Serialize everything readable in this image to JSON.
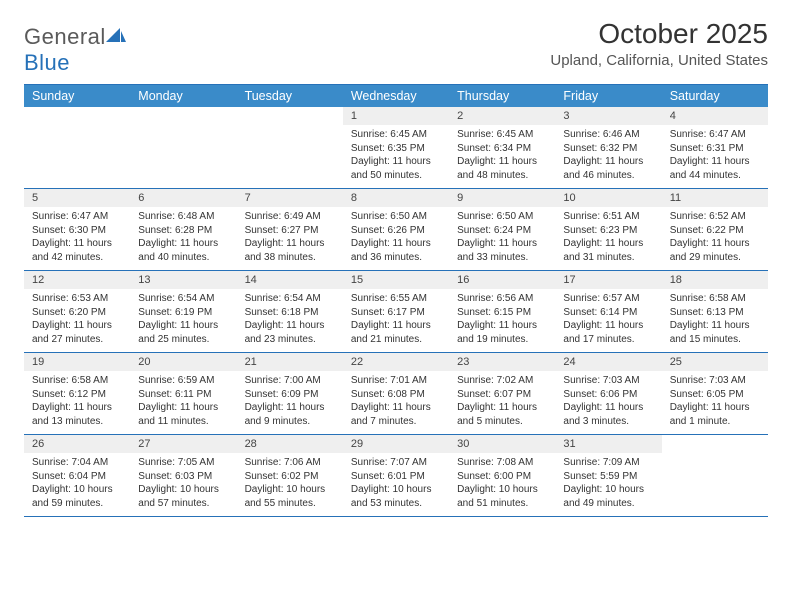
{
  "logo": {
    "text1": "General",
    "text2": "Blue"
  },
  "title": "October 2025",
  "location": "Upland, California, United States",
  "colors": {
    "header_bg": "#3a8bc9",
    "rule": "#2671b8",
    "daynum_bg": "#efefef",
    "text": "#333333",
    "logo_gray": "#5a5a5a",
    "logo_blue": "#2671b8"
  },
  "weekdays": [
    "Sunday",
    "Monday",
    "Tuesday",
    "Wednesday",
    "Thursday",
    "Friday",
    "Saturday"
  ],
  "first_weekday_index": 3,
  "days": [
    {
      "n": 1,
      "sunrise": "6:45 AM",
      "sunset": "6:35 PM",
      "daylight": "11 hours and 50 minutes."
    },
    {
      "n": 2,
      "sunrise": "6:45 AM",
      "sunset": "6:34 PM",
      "daylight": "11 hours and 48 minutes."
    },
    {
      "n": 3,
      "sunrise": "6:46 AM",
      "sunset": "6:32 PM",
      "daylight": "11 hours and 46 minutes."
    },
    {
      "n": 4,
      "sunrise": "6:47 AM",
      "sunset": "6:31 PM",
      "daylight": "11 hours and 44 minutes."
    },
    {
      "n": 5,
      "sunrise": "6:47 AM",
      "sunset": "6:30 PM",
      "daylight": "11 hours and 42 minutes."
    },
    {
      "n": 6,
      "sunrise": "6:48 AM",
      "sunset": "6:28 PM",
      "daylight": "11 hours and 40 minutes."
    },
    {
      "n": 7,
      "sunrise": "6:49 AM",
      "sunset": "6:27 PM",
      "daylight": "11 hours and 38 minutes."
    },
    {
      "n": 8,
      "sunrise": "6:50 AM",
      "sunset": "6:26 PM",
      "daylight": "11 hours and 36 minutes."
    },
    {
      "n": 9,
      "sunrise": "6:50 AM",
      "sunset": "6:24 PM",
      "daylight": "11 hours and 33 minutes."
    },
    {
      "n": 10,
      "sunrise": "6:51 AM",
      "sunset": "6:23 PM",
      "daylight": "11 hours and 31 minutes."
    },
    {
      "n": 11,
      "sunrise": "6:52 AM",
      "sunset": "6:22 PM",
      "daylight": "11 hours and 29 minutes."
    },
    {
      "n": 12,
      "sunrise": "6:53 AM",
      "sunset": "6:20 PM",
      "daylight": "11 hours and 27 minutes."
    },
    {
      "n": 13,
      "sunrise": "6:54 AM",
      "sunset": "6:19 PM",
      "daylight": "11 hours and 25 minutes."
    },
    {
      "n": 14,
      "sunrise": "6:54 AM",
      "sunset": "6:18 PM",
      "daylight": "11 hours and 23 minutes."
    },
    {
      "n": 15,
      "sunrise": "6:55 AM",
      "sunset": "6:17 PM",
      "daylight": "11 hours and 21 minutes."
    },
    {
      "n": 16,
      "sunrise": "6:56 AM",
      "sunset": "6:15 PM",
      "daylight": "11 hours and 19 minutes."
    },
    {
      "n": 17,
      "sunrise": "6:57 AM",
      "sunset": "6:14 PM",
      "daylight": "11 hours and 17 minutes."
    },
    {
      "n": 18,
      "sunrise": "6:58 AM",
      "sunset": "6:13 PM",
      "daylight": "11 hours and 15 minutes."
    },
    {
      "n": 19,
      "sunrise": "6:58 AM",
      "sunset": "6:12 PM",
      "daylight": "11 hours and 13 minutes."
    },
    {
      "n": 20,
      "sunrise": "6:59 AM",
      "sunset": "6:11 PM",
      "daylight": "11 hours and 11 minutes."
    },
    {
      "n": 21,
      "sunrise": "7:00 AM",
      "sunset": "6:09 PM",
      "daylight": "11 hours and 9 minutes."
    },
    {
      "n": 22,
      "sunrise": "7:01 AM",
      "sunset": "6:08 PM",
      "daylight": "11 hours and 7 minutes."
    },
    {
      "n": 23,
      "sunrise": "7:02 AM",
      "sunset": "6:07 PM",
      "daylight": "11 hours and 5 minutes."
    },
    {
      "n": 24,
      "sunrise": "7:03 AM",
      "sunset": "6:06 PM",
      "daylight": "11 hours and 3 minutes."
    },
    {
      "n": 25,
      "sunrise": "7:03 AM",
      "sunset": "6:05 PM",
      "daylight": "11 hours and 1 minute."
    },
    {
      "n": 26,
      "sunrise": "7:04 AM",
      "sunset": "6:04 PM",
      "daylight": "10 hours and 59 minutes."
    },
    {
      "n": 27,
      "sunrise": "7:05 AM",
      "sunset": "6:03 PM",
      "daylight": "10 hours and 57 minutes."
    },
    {
      "n": 28,
      "sunrise": "7:06 AM",
      "sunset": "6:02 PM",
      "daylight": "10 hours and 55 minutes."
    },
    {
      "n": 29,
      "sunrise": "7:07 AM",
      "sunset": "6:01 PM",
      "daylight": "10 hours and 53 minutes."
    },
    {
      "n": 30,
      "sunrise": "7:08 AM",
      "sunset": "6:00 PM",
      "daylight": "10 hours and 51 minutes."
    },
    {
      "n": 31,
      "sunrise": "7:09 AM",
      "sunset": "5:59 PM",
      "daylight": "10 hours and 49 minutes."
    }
  ],
  "labels": {
    "sunrise": "Sunrise:",
    "sunset": "Sunset:",
    "daylight": "Daylight:"
  }
}
